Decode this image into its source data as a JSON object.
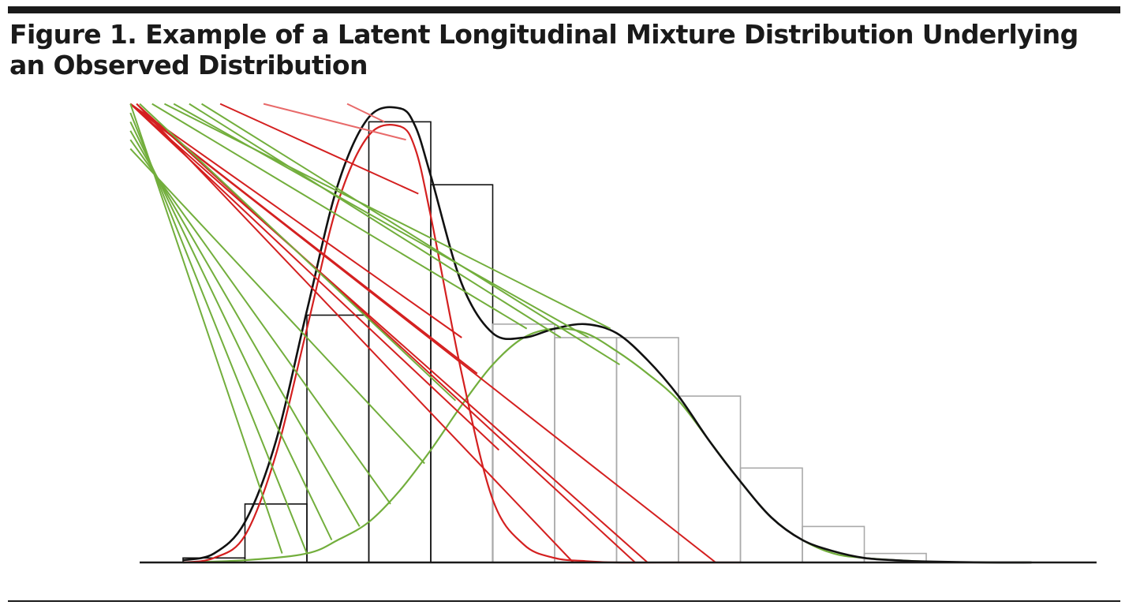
{
  "figure": {
    "title": "Figure 1. Example of a Latent Longitudinal Mixture Distribution Underlying an Observed Distribution"
  },
  "chart_data": {
    "type": "bar",
    "title": "Figure 1. Example of a Latent Longitudinal Mixture Distribution Underlying an Observed Distribution",
    "xlabel": "",
    "ylabel": "",
    "grid": false,
    "legend": "none",
    "ylim": [
      0,
      1
    ],
    "xlim": [
      -1,
      14
    ],
    "histogram": {
      "bin_edges": [
        0,
        1,
        2,
        3,
        4,
        5,
        6,
        7,
        8,
        9,
        10,
        11,
        12
      ],
      "values": [
        0.01,
        0.13,
        0.55,
        0.98,
        0.84,
        0.53,
        0.5,
        0.5,
        0.37,
        0.21,
        0.08,
        0.02
      ],
      "colors": [
        "#111111",
        "#111111",
        "#111111",
        "#111111",
        "#111111",
        "#aaaaaa",
        "#aaaaaa",
        "#aaaaaa",
        "#aaaaaa",
        "#aaaaaa",
        "#aaaaaa",
        "#aaaaaa"
      ]
    },
    "series": [
      {
        "color": "#111111",
        "type": "density",
        "x": [
          0.0,
          0.5,
          1.0,
          1.5,
          2.0,
          2.5,
          3.0,
          3.5,
          3.75,
          4.0,
          4.5,
          5.0,
          5.5,
          6.0,
          6.5,
          7.0,
          7.5,
          8.0,
          8.5,
          9.0,
          9.5,
          10.0,
          10.5,
          11.0,
          11.5,
          12.0,
          13.0,
          13.7
        ],
        "values": [
          0.005,
          0.02,
          0.09,
          0.27,
          0.56,
          0.84,
          0.99,
          1.01,
          0.97,
          0.86,
          0.62,
          0.51,
          0.5,
          0.52,
          0.53,
          0.51,
          0.45,
          0.37,
          0.27,
          0.18,
          0.1,
          0.05,
          0.025,
          0.01,
          0.005,
          0.002,
          0.0,
          0.0
        ]
      },
      {
        "color": "#d42020",
        "type": "density",
        "x": [
          0.0,
          0.5,
          1.0,
          1.5,
          2.0,
          2.5,
          3.0,
          3.5,
          3.75,
          4.0,
          4.5,
          5.0,
          5.5,
          6.0,
          6.5,
          7.0,
          8.0,
          9.0
        ],
        "values": [
          0.0,
          0.01,
          0.06,
          0.24,
          0.52,
          0.8,
          0.95,
          0.97,
          0.92,
          0.77,
          0.42,
          0.14,
          0.04,
          0.01,
          0.003,
          0.0,
          0.0,
          0.0
        ]
      },
      {
        "color": "#72ae3c",
        "type": "density",
        "x": [
          0.0,
          1.0,
          2.0,
          2.5,
          3.0,
          3.5,
          4.0,
          4.5,
          5.0,
          5.5,
          6.0,
          6.5,
          7.0,
          7.5,
          8.0,
          8.5,
          9.0,
          9.5,
          10.0,
          10.5,
          11.0,
          12.0,
          13.0,
          13.7
        ],
        "values": [
          0.0,
          0.005,
          0.02,
          0.05,
          0.09,
          0.16,
          0.25,
          0.35,
          0.44,
          0.5,
          0.52,
          0.51,
          0.47,
          0.42,
          0.36,
          0.27,
          0.18,
          0.1,
          0.05,
          0.02,
          0.01,
          0.002,
          0.0,
          0.0
        ]
      }
    ],
    "projection_lines": [
      {
        "color": "#d42020",
        "from": [
          -0.85,
          1.02
        ],
        "to": [
          4.5,
          0.5
        ]
      },
      {
        "color": "#d42020",
        "from": [
          -0.85,
          1.02
        ],
        "to": [
          4.75,
          0.42
        ]
      },
      {
        "color": "#d42020",
        "from": [
          -0.85,
          1.02
        ],
        "to": [
          5.1,
          0.25
        ]
      },
      {
        "color": "#d42020",
        "from": [
          -0.85,
          1.02
        ],
        "to": [
          7.5,
          0.0
        ]
      },
      {
        "color": "#d42020",
        "from": [
          -0.85,
          1.02
        ],
        "to": [
          8.6,
          0.0
        ]
      },
      {
        "color": "#d42020",
        "from": [
          -0.75,
          1.02
        ],
        "to": [
          7.3,
          0.0
        ]
      },
      {
        "color": "#d42020",
        "from": [
          -0.75,
          1.02
        ],
        "to": [
          6.3,
          0.0
        ]
      },
      {
        "color": "#d42020",
        "from": [
          0.6,
          1.02
        ],
        "to": [
          3.8,
          0.82
        ]
      },
      {
        "color": "#e86a6a",
        "from": [
          1.3,
          1.02
        ],
        "to": [
          3.6,
          0.94
        ]
      },
      {
        "color": "#e86a6a",
        "from": [
          2.65,
          1.02
        ],
        "to": [
          3.25,
          0.98
        ]
      },
      {
        "color": "#72ae3c",
        "from": [
          -0.85,
          1.02
        ],
        "to": [
          1.6,
          0.02
        ]
      },
      {
        "color": "#72ae3c",
        "from": [
          -0.85,
          1.0
        ],
        "to": [
          2.0,
          0.02
        ]
      },
      {
        "color": "#72ae3c",
        "from": [
          -0.85,
          0.98
        ],
        "to": [
          2.4,
          0.05
        ]
      },
      {
        "color": "#72ae3c",
        "from": [
          -0.85,
          0.96
        ],
        "to": [
          2.85,
          0.08
        ]
      },
      {
        "color": "#72ae3c",
        "from": [
          -0.85,
          0.94
        ],
        "to": [
          3.35,
          0.13
        ]
      },
      {
        "color": "#72ae3c",
        "from": [
          -0.85,
          0.92
        ],
        "to": [
          3.9,
          0.22
        ]
      },
      {
        "color": "#72ae3c",
        "from": [
          -0.7,
          1.02
        ],
        "to": [
          4.4,
          0.36
        ]
      },
      {
        "color": "#72ae3c",
        "from": [
          -0.5,
          1.02
        ],
        "to": [
          5.55,
          0.52
        ]
      },
      {
        "color": "#72ae3c",
        "from": [
          -0.3,
          1.02
        ],
        "to": [
          6.9,
          0.52
        ]
      },
      {
        "color": "#72ae3c",
        "from": [
          -0.15,
          1.02
        ],
        "to": [
          6.55,
          0.5
        ]
      },
      {
        "color": "#72ae3c",
        "from": [
          0.3,
          1.02
        ],
        "to": [
          7.05,
          0.44
        ]
      },
      {
        "color": "#72ae3c",
        "from": [
          0.1,
          1.02
        ],
        "to": [
          6.1,
          0.5
        ]
      }
    ]
  }
}
